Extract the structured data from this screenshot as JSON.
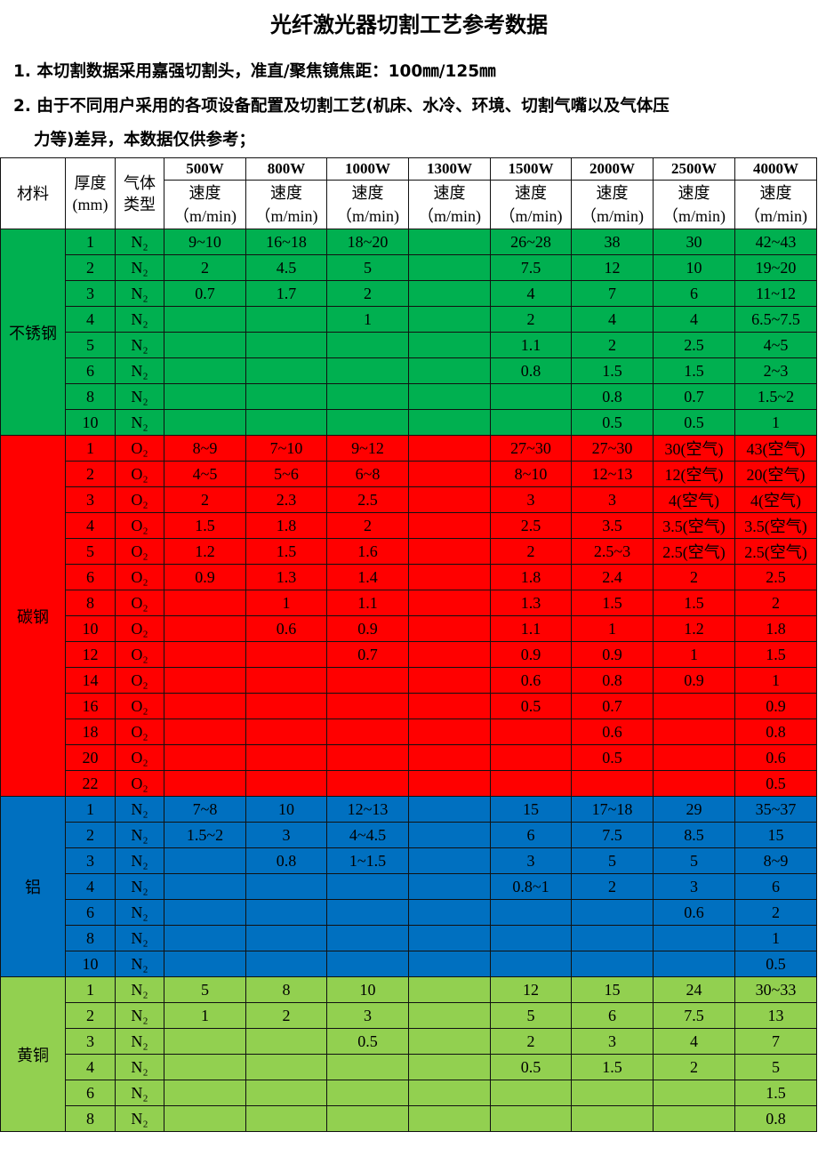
{
  "title": "光纤激光器切割工艺参考数据",
  "notes": [
    "1. 本切割数据采用嘉强切割头，准直/聚焦镜焦距：100㎜/125㎜",
    "2. 由于不同用户采用的各项设备配置及切割工艺(机床、水冷、环境、切割气嘴以及气体压",
    "力等)差异，本数据仅供参考；"
  ],
  "table": {
    "headers": {
      "material": "材料",
      "thickness": "厚度",
      "thickness_unit": "(mm)",
      "gas": "气体",
      "gas2": "类型",
      "speed": "速度",
      "speed_unit": "（m/min)",
      "powers": [
        "500W",
        "800W",
        "1000W",
        "1300W",
        "1500W",
        "2000W",
        "2500W",
        "4000W"
      ]
    },
    "sections": [
      {
        "material": "不锈钢",
        "color": "#00b050",
        "rows": [
          {
            "t": "1",
            "gas": "N₂",
            "v": [
              "9~10",
              "16~18",
              "18~20",
              "",
              "26~28",
              "38",
              "30",
              "42~43"
            ]
          },
          {
            "t": "2",
            "gas": "N₂",
            "v": [
              "2",
              "4.5",
              "5",
              "",
              "7.5",
              "12",
              "10",
              "19~20"
            ]
          },
          {
            "t": "3",
            "gas": "N₂",
            "v": [
              "0.7",
              "1.7",
              "2",
              "",
              "4",
              "7",
              "6",
              "11~12"
            ]
          },
          {
            "t": "4",
            "gas": "N₂",
            "v": [
              "",
              "",
              "1",
              "",
              "2",
              "4",
              "4",
              "6.5~7.5"
            ]
          },
          {
            "t": "5",
            "gas": "N₂",
            "v": [
              "",
              "",
              "",
              "",
              "1.1",
              "2",
              "2.5",
              "4~5"
            ]
          },
          {
            "t": "6",
            "gas": "N₂",
            "v": [
              "",
              "",
              "",
              "",
              "0.8",
              "1.5",
              "1.5",
              "2~3"
            ]
          },
          {
            "t": "8",
            "gas": "N₂",
            "v": [
              "",
              "",
              "",
              "",
              "",
              "0.8",
              "0.7",
              "1.5~2"
            ]
          },
          {
            "t": "10",
            "gas": "N₂",
            "v": [
              "",
              "",
              "",
              "",
              "",
              "0.5",
              "0.5",
              "1"
            ]
          }
        ]
      },
      {
        "material": "碳钢",
        "color": "#ff0000",
        "rows": [
          {
            "t": "1",
            "gas": "O₂",
            "v": [
              "8~9",
              "7~10",
              "9~12",
              "",
              "27~30",
              "27~30",
              "30(空气)",
              "43(空气)"
            ]
          },
          {
            "t": "2",
            "gas": "O₂",
            "v": [
              "4~5",
              "5~6",
              "6~8",
              "",
              "8~10",
              "12~13",
              "12(空气)",
              "20(空气)"
            ]
          },
          {
            "t": "3",
            "gas": "O₂",
            "v": [
              "2",
              "2.3",
              "2.5",
              "",
              "3",
              "3",
              "4(空气)",
              "4(空气)"
            ]
          },
          {
            "t": "4",
            "gas": "O₂",
            "v": [
              "1.5",
              "1.8",
              "2",
              "",
              "2.5",
              "3.5",
              "3.5(空气)",
              "3.5(空气)"
            ]
          },
          {
            "t": "5",
            "gas": "O₂",
            "v": [
              "1.2",
              "1.5",
              "1.6",
              "",
              "2",
              "2.5~3",
              "2.5(空气)",
              "2.5(空气)"
            ]
          },
          {
            "t": "6",
            "gas": "O₂",
            "v": [
              "0.9",
              "1.3",
              "1.4",
              "",
              "1.8",
              "2.4",
              "2",
              "2.5"
            ]
          },
          {
            "t": "8",
            "gas": "O₂",
            "v": [
              "",
              "1",
              "1.1",
              "",
              "1.3",
              "1.5",
              "1.5",
              "2"
            ]
          },
          {
            "t": "10",
            "gas": "O₂",
            "v": [
              "",
              "0.6",
              "0.9",
              "",
              "1.1",
              "1",
              "1.2",
              "1.8"
            ]
          },
          {
            "t": "12",
            "gas": "O₂",
            "v": [
              "",
              "",
              "0.7",
              "",
              "0.9",
              "0.9",
              "1",
              "1.5"
            ]
          },
          {
            "t": "14",
            "gas": "O₂",
            "v": [
              "",
              "",
              "",
              "",
              "0.6",
              "0.8",
              "0.9",
              "1"
            ]
          },
          {
            "t": "16",
            "gas": "O₂",
            "v": [
              "",
              "",
              "",
              "",
              "0.5",
              "0.7",
              "",
              "0.9"
            ]
          },
          {
            "t": "18",
            "gas": "O₂",
            "v": [
              "",
              "",
              "",
              "",
              "",
              "0.6",
              "",
              "0.8"
            ]
          },
          {
            "t": "20",
            "gas": "O₂",
            "v": [
              "",
              "",
              "",
              "",
              "",
              "0.5",
              "",
              "0.6"
            ]
          },
          {
            "t": "22",
            "gas": "O₂",
            "v": [
              "",
              "",
              "",
              "",
              "",
              "",
              "",
              "0.5"
            ]
          }
        ]
      },
      {
        "material": "铝",
        "color": "#0070c0",
        "rows": [
          {
            "t": "1",
            "gas": "N₂",
            "v": [
              "7~8",
              "10",
              "12~13",
              "",
              "15",
              "17~18",
              "29",
              "35~37"
            ]
          },
          {
            "t": "2",
            "gas": "N₂",
            "v": [
              "1.5~2",
              "3",
              "4~4.5",
              "",
              "6",
              "7.5",
              "8.5",
              "15"
            ]
          },
          {
            "t": "3",
            "gas": "N₂",
            "v": [
              "",
              "0.8",
              "1~1.5",
              "",
              "3",
              "5",
              "5",
              "8~9"
            ]
          },
          {
            "t": "4",
            "gas": "N₂",
            "v": [
              "",
              "",
              "",
              "",
              "0.8~1",
              "2",
              "3",
              "6"
            ]
          },
          {
            "t": "6",
            "gas": "N₂",
            "v": [
              "",
              "",
              "",
              "",
              "",
              "",
              "0.6",
              "2"
            ]
          },
          {
            "t": "8",
            "gas": "N₂",
            "v": [
              "",
              "",
              "",
              "",
              "",
              "",
              "",
              "1"
            ]
          },
          {
            "t": "10",
            "gas": "N₂",
            "v": [
              "",
              "",
              "",
              "",
              "",
              "",
              "",
              "0.5"
            ]
          }
        ]
      },
      {
        "material": "黄铜",
        "color": "#92d050",
        "rows": [
          {
            "t": "1",
            "gas": "N₂",
            "v": [
              "5",
              "8",
              "10",
              "",
              "12",
              "15",
              "24",
              "30~33"
            ]
          },
          {
            "t": "2",
            "gas": "N₂",
            "v": [
              "1",
              "2",
              "3",
              "",
              "5",
              "6",
              "7.5",
              "13"
            ]
          },
          {
            "t": "3",
            "gas": "N₂",
            "v": [
              "",
              "",
              "0.5",
              "",
              "2",
              "3",
              "4",
              "7"
            ]
          },
          {
            "t": "4",
            "gas": "N₂",
            "v": [
              "",
              "",
              "",
              "",
              "0.5",
              "1.5",
              "2",
              "5"
            ]
          },
          {
            "t": "6",
            "gas": "N₂",
            "v": [
              "",
              "",
              "",
              "",
              "",
              "",
              "",
              "1.5"
            ]
          },
          {
            "t": "8",
            "gas": "N₂",
            "v": [
              "",
              "",
              "",
              "",
              "",
              "",
              "",
              "0.8"
            ]
          }
        ]
      }
    ]
  }
}
